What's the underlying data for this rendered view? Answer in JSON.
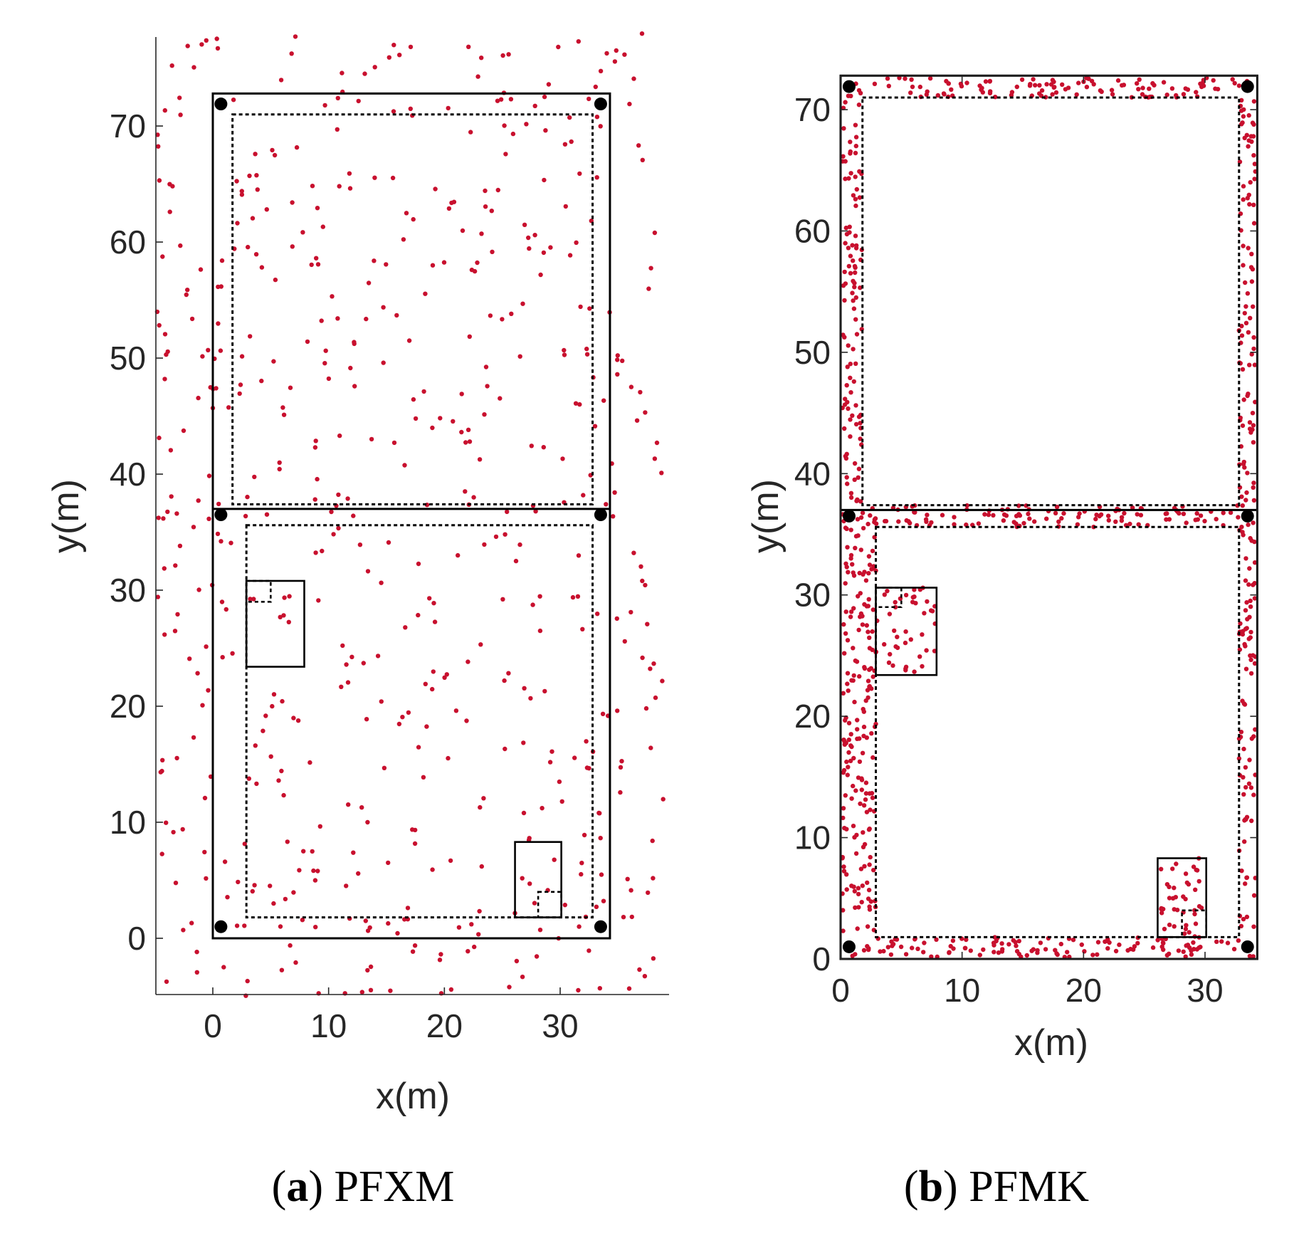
{
  "colors": {
    "particle": "#c8102e",
    "anchor": "#000000",
    "structure": "#000000"
  },
  "chart_data": [
    {
      "type": "scatter",
      "panel_letter": "a",
      "caption": "PFXM",
      "xlabel": "x(m)",
      "ylabel": "y(m)",
      "xlim": [
        -5,
        39
      ],
      "ylim": [
        -5,
        78
      ],
      "xticks": [
        0,
        10,
        20,
        30
      ],
      "yticks": [
        0,
        10,
        20,
        30,
        40,
        50,
        60,
        70
      ],
      "grid": false,
      "box": false,
      "walls_outer": [
        [
          0,
          0
        ],
        [
          34.3,
          72.8
        ]
      ],
      "divider_y": 37.0,
      "zones_dashed": [
        [
          [
            1.7,
            37.4
          ],
          [
            32.8,
            71.0
          ]
        ],
        [
          [
            2.9,
            1.8
          ],
          [
            32.8,
            35.6
          ]
        ]
      ],
      "furniture": [
        {
          "outer": [
            [
              2.9,
              23.4
            ],
            [
              7.9,
              30.8
            ]
          ],
          "inner": [
            [
              2.9,
              29.0
            ],
            [
              5.0,
              30.8
            ]
          ]
        },
        {
          "outer": [
            [
              26.1,
              1.8
            ],
            [
              30.1,
              8.3
            ]
          ],
          "inner": [
            [
              28.1,
              1.8
            ],
            [
              30.1,
              4.0
            ]
          ]
        }
      ],
      "anchors": [
        [
          0.7,
          1.0
        ],
        [
          33.5,
          1.0
        ],
        [
          0.7,
          36.5
        ],
        [
          33.5,
          36.5
        ],
        [
          0.7,
          71.9
        ],
        [
          33.5,
          71.9
        ]
      ],
      "particles": {
        "count": 560,
        "distribution": "uniform over the whole plotted area"
      }
    },
    {
      "type": "scatter",
      "panel_letter": "b",
      "caption": "PFMK",
      "xlabel": "x(m)",
      "ylabel": "y(m)",
      "xlim": [
        0,
        34.3
      ],
      "ylim": [
        0,
        72.8
      ],
      "xticks": [
        0,
        10,
        20,
        30
      ],
      "yticks": [
        0,
        10,
        20,
        30,
        40,
        50,
        60,
        70
      ],
      "grid": false,
      "box": true,
      "walls_outer": [
        [
          0,
          0
        ],
        [
          34.3,
          72.8
        ]
      ],
      "divider_y": 37.0,
      "zones_dashed": [
        [
          [
            1.8,
            37.4
          ],
          [
            32.8,
            71.0
          ]
        ],
        [
          [
            2.9,
            1.8
          ],
          [
            32.8,
            35.6
          ]
        ]
      ],
      "furniture": [
        {
          "outer": [
            [
              2.9,
              23.4
            ],
            [
              7.9,
              30.6
            ]
          ],
          "inner": [
            [
              2.9,
              29.0
            ],
            [
              5.0,
              30.6
            ]
          ]
        },
        {
          "outer": [
            [
              26.1,
              1.8
            ],
            [
              30.1,
              8.3
            ]
          ],
          "inner": [
            [
              28.1,
              1.8
            ],
            [
              30.1,
              4.0
            ]
          ]
        }
      ],
      "anchors": [
        [
          0.7,
          1.0
        ],
        [
          33.5,
          1.0
        ],
        [
          0.7,
          36.5
        ],
        [
          33.5,
          36.5
        ],
        [
          0.7,
          71.9
        ],
        [
          33.5,
          71.9
        ]
      ],
      "particles": {
        "count": 900,
        "distribution": "only in corridor bands between walls and dashed zones and inside furniture boxes"
      }
    }
  ]
}
